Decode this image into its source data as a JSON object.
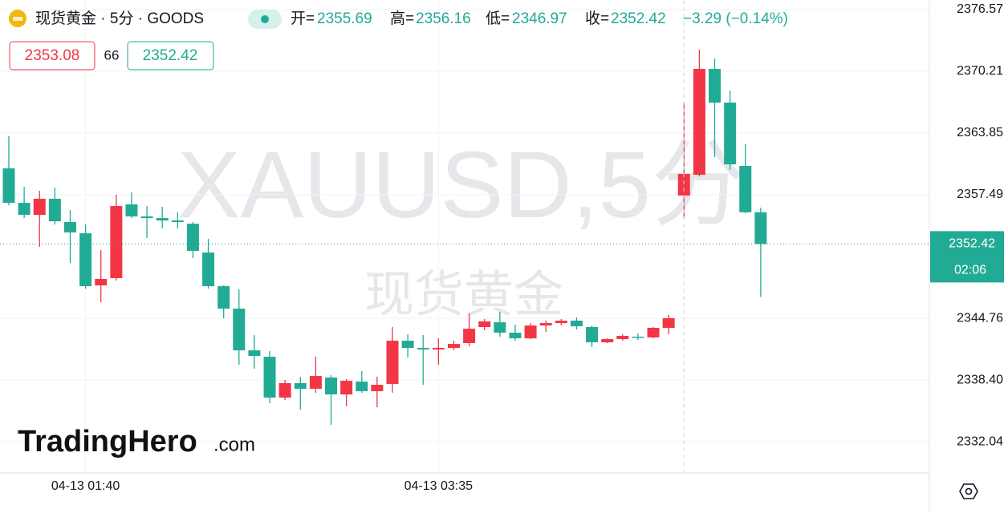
{
  "header": {
    "title": "现货黄金 · 5分 · GOODS",
    "open_label": "开=",
    "high_label": "高=",
    "low_label": "低=",
    "close_label": "收=",
    "change": "−3.29 (−0.14%)",
    "ask": "2353.08",
    "spread": "66",
    "countdown": "02:06"
  },
  "watermark": {
    "symbol": "XAUUSD,5分",
    "name": "现货黄金",
    "brand": "TradingHero",
    "brand_suffix": ".com"
  },
  "chart_data": {
    "type": "candlestick",
    "categories": [
      null,
      null,
      null,
      null,
      null,
      "04-13 01:40",
      null,
      null,
      null,
      null,
      null,
      null,
      null,
      null,
      null,
      null,
      null,
      null,
      null,
      null,
      null,
      null,
      null,
      null,
      null,
      null,
      null,
      null,
      "04-13 03:35",
      null,
      null,
      null,
      null,
      null,
      null,
      null,
      null,
      null,
      null,
      null,
      null,
      null,
      null,
      null,
      null,
      null,
      null,
      null,
      null,
      null
    ],
    "open": [
      2360.21,
      2356.66,
      2355.42,
      2357.08,
      2354.68,
      2353.52,
      2348.15,
      2348.9,
      2356.5,
      2355.26,
      2355.09,
      2354.84,
      2354.51,
      2351.54,
      2348.07,
      2345.76,
      2341.46,
      2340.8,
      2336.59,
      2338.08,
      2337.5,
      2338.66,
      2336.92,
      2338.24,
      2337.25,
      2337.99,
      2342.45,
      2341.71,
      2341.55,
      2341.71,
      2342.21,
      2343.86,
      2344.35,
      2343.28,
      2342.7,
      2344.02,
      2344.27,
      2344.52,
      2343.86,
      2342.29,
      2342.62,
      2342.87,
      2342.79,
      2343.78,
      2357.41,
      2359.55,
      2370.46,
      2366.99,
      2360.46,
      2355.69
    ],
    "high": [
      2363.52,
      2358.31,
      2357.9,
      2358.23,
      2355.92,
      2354.43,
      2351.79,
      2357.49,
      2357.74,
      2356.33,
      2356.25,
      2355.67,
      2354.68,
      2352.95,
      2348.15,
      2347.74,
      2343.03,
      2341.38,
      2338.41,
      2338.74,
      2340.8,
      2338.9,
      2338.49,
      2339.32,
      2338.74,
      2343.86,
      2343.12,
      2343.03,
      2342.7,
      2342.45,
      2345.26,
      2344.69,
      2345.43,
      2344.11,
      2344.27,
      2344.52,
      2344.69,
      2344.85,
      2344.02,
      2342.7,
      2343.12,
      2343.2,
      2343.86,
      2345.1,
      2366.99,
      2372.44,
      2371.53,
      2368.23,
      2362.69,
      2356.16
    ],
    "low": [
      2356.41,
      2355.09,
      2352.12,
      2354.43,
      2350.47,
      2347.82,
      2346.42,
      2348.65,
      2355.09,
      2353.03,
      2354.02,
      2354.02,
      2350.96,
      2347.82,
      2344.77,
      2339.98,
      2339.56,
      2336.01,
      2336.34,
      2335.35,
      2337.09,
      2333.78,
      2335.68,
      2337.09,
      2335.6,
      2337.09,
      2340.72,
      2337.91,
      2339.98,
      2341.46,
      2341.88,
      2343.53,
      2342.87,
      2342.45,
      2342.62,
      2343.36,
      2344.02,
      2343.61,
      2341.79,
      2342.21,
      2342.45,
      2342.54,
      2342.7,
      2343.12,
      2355.09,
      2359.39,
      2361.37,
      2360.05,
      2355.59,
      2346.97
    ],
    "close": [
      2356.66,
      2355.42,
      2357.08,
      2354.76,
      2353.61,
      2348.07,
      2348.82,
      2356.33,
      2355.26,
      2355.09,
      2354.84,
      2354.68,
      2351.71,
      2348.07,
      2345.76,
      2341.46,
      2340.89,
      2336.59,
      2338.08,
      2337.5,
      2338.82,
      2336.92,
      2338.32,
      2337.25,
      2337.91,
      2342.45,
      2341.71,
      2341.55,
      2341.71,
      2342.12,
      2343.69,
      2344.44,
      2343.28,
      2342.7,
      2344.02,
      2344.27,
      2344.52,
      2343.94,
      2342.29,
      2342.62,
      2342.95,
      2342.79,
      2343.78,
      2344.77,
      2359.64,
      2370.46,
      2366.99,
      2360.63,
      2355.69,
      2352.42
    ],
    "up_color": "#f23645",
    "down_color": "#22ab94",
    "ylim": [
      2328.83,
      2377.56
    ],
    "yticks": [
      2332.04,
      {
        "value": 2338.4,
        "label": "2338.40"
      },
      2344.76,
      2357.49,
      2363.85,
      2370.21,
      2376.57
    ],
    "grid": true
  }
}
